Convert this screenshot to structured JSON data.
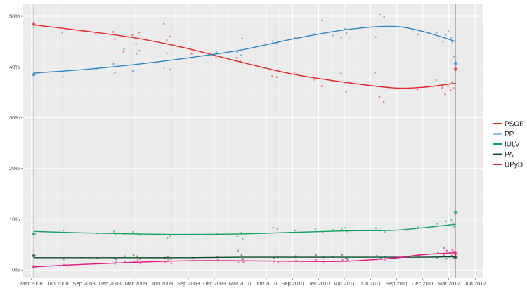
{
  "chart_data": {
    "type": "scatter",
    "title": "",
    "xlabel": "",
    "ylabel": "",
    "xlim": [
      "2008-02-01",
      "2012-06-30"
    ],
    "ylim": [
      -1.5,
      52.5
    ],
    "y_ticks": [
      0,
      10,
      20,
      30,
      40,
      50
    ],
    "y_tick_labels": [
      "0%",
      "10%",
      "20%",
      "30%",
      "40%",
      "50%"
    ],
    "x_ticks": [
      "2008-03-01",
      "2008-06-01",
      "2008-09-01",
      "2008-12-01",
      "2009-03-01",
      "2009-06-01",
      "2009-09-01",
      "2009-12-01",
      "2010-03-01",
      "2010-06-01",
      "2010-09-01",
      "2010-12-01",
      "2011-03-01",
      "2011-06-01",
      "2011-09-01",
      "2011-12-01",
      "2012-03-01",
      "2012-06-01"
    ],
    "x_tick_labels": [
      "Mar 2008",
      "Jun 2008",
      "Sep 2008",
      "Dec 2008",
      "Mar 2009",
      "Jun 2009",
      "Sep 2009",
      "Dec 2009",
      "Mar 2010",
      "Jun 2010",
      "Sep 2010",
      "Dec 2010",
      "Mar 2011",
      "Jun 2011",
      "Sep 2011",
      "Dec 2011",
      "Mar 2012",
      "Jun 2012"
    ],
    "grid": true,
    "legend_placement": "right",
    "election_dates": [
      "2008-03-09",
      "2012-03-25"
    ],
    "series": [
      {
        "name": "PSOE",
        "color": "#e3262b"
      },
      {
        "name": "PP",
        "color": "#2b84c6"
      },
      {
        "name": "IULV",
        "color": "#11a05f"
      },
      {
        "name": "PA",
        "color": "#0c4a2e"
      },
      {
        "name": "UPyD",
        "color": "#e5137f"
      }
    ],
    "elections": [
      {
        "date": "2008-03-09",
        "values": [
          48.4,
          38.5,
          7.1,
          2.8,
          0.6
        ]
      },
      {
        "date": "2012-03-25",
        "values": [
          39.6,
          40.7,
          11.3,
          2.5,
          3.3
        ]
      }
    ],
    "polls": [
      {
        "date": "2008-06-20",
        "values": [
          46.8,
          38.1,
          7.8,
          2.1,
          1.0
        ]
      },
      {
        "date": "2008-10-15",
        "values": [
          46.5,
          39.6,
          7.2,
          2.3,
          1.3
        ]
      },
      {
        "date": "2008-12-15",
        "values": [
          46.9,
          40.6,
          7.6,
          2.3,
          1.2
        ]
      },
      {
        "date": "2008-12-20",
        "values": [
          45.5,
          38.9,
          6.9,
          2.1,
          1.5
        ]
      },
      {
        "date": "2009-01-20",
        "values": [
          43.0,
          43.5,
          7.1,
          2.7,
          1.6
        ]
      },
      {
        "date": "2009-02-20",
        "values": [
          46.3,
          39.2,
          7.5,
          2.9,
          1.7
        ]
      },
      {
        "date": "2009-03-05",
        "values": [
          44.5,
          42.6,
          7.2,
          2.7,
          1.9
        ]
      },
      {
        "date": "2009-03-15",
        "values": [
          46.8,
          43.2,
          6.9,
          2.2,
          1.3
        ]
      },
      {
        "date": "2009-06-10",
        "values": [
          48.5,
          39.9,
          7.0,
          2.4,
          1.6
        ]
      },
      {
        "date": "2009-06-20",
        "values": [
          45.3,
          42.7,
          6.3,
          2.5,
          1.9
        ]
      },
      {
        "date": "2009-07-01",
        "values": [
          46.0,
          39.5,
          6.7,
          2.1,
          1.3
        ]
      },
      {
        "date": "2009-09-15",
        "values": [
          42.6,
          41.8,
          7.0,
          2.4,
          1.8
        ]
      },
      {
        "date": "2009-12-10",
        "values": [
          41.9,
          42.9,
          7.1,
          2.5,
          1.9
        ]
      },
      {
        "date": "2010-02-20",
        "values": [
          41.8,
          43.0,
          6.6,
          3.8,
          1.5
        ]
      },
      {
        "date": "2010-03-05",
        "values": [
          41.2,
          42.3,
          7.3,
          2.9,
          2.1
        ]
      },
      {
        "date": "2010-03-10",
        "values": [
          40.9,
          45.6,
          6.1,
          2.2,
          1.6
        ]
      },
      {
        "date": "2010-06-25",
        "values": [
          38.2,
          45.1,
          8.3,
          2.3,
          1.7
        ]
      },
      {
        "date": "2010-07-10",
        "values": [
          38.0,
          44.6,
          8.1,
          2.5,
          1.5
        ]
      },
      {
        "date": "2010-09-10",
        "values": [
          38.9,
          45.8,
          7.8,
          2.7,
          1.8
        ]
      },
      {
        "date": "2010-11-20",
        "values": [
          37.5,
          46.5,
          8.0,
          2.9,
          1.9
        ]
      },
      {
        "date": "2010-12-15",
        "values": [
          36.2,
          49.2,
          7.4,
          2.5,
          1.6
        ]
      },
      {
        "date": "2011-01-20",
        "values": [
          37.1,
          46.2,
          7.9,
          2.6,
          1.7
        ]
      },
      {
        "date": "2011-02-20",
        "values": [
          38.7,
          45.8,
          8.1,
          3.0,
          2.0
        ]
      },
      {
        "date": "2011-03-05",
        "values": [
          36.9,
          47.5,
          8.3,
          2.4,
          1.7
        ]
      },
      {
        "date": "2011-03-10",
        "values": [
          35.1,
          46.7,
          7.6,
          2.2,
          1.9
        ]
      },
      {
        "date": "2011-06-20",
        "values": [
          38.9,
          45.9,
          8.2,
          2.1,
          2.8
        ]
      },
      {
        "date": "2011-07-05",
        "values": [
          34.1,
          50.3,
          7.8,
          2.4,
          2.2
        ]
      },
      {
        "date": "2011-07-20",
        "values": [
          33.1,
          49.9,
          7.5,
          2.6,
          1.9
        ]
      },
      {
        "date": "2011-11-15",
        "values": [
          35.6,
          46.4,
          8.4,
          2.7,
          3.1
        ]
      },
      {
        "date": "2012-01-20",
        "values": [
          37.4,
          46.8,
          9.1,
          2.3,
          3.4
        ]
      },
      {
        "date": "2012-02-10",
        "values": [
          35.9,
          45.0,
          8.7,
          2.9,
          4.3
        ]
      },
      {
        "date": "2012-02-20",
        "values": [
          34.6,
          46.3,
          9.6,
          2.2,
          3.8
        ]
      },
      {
        "date": "2012-03-01",
        "values": [
          36.2,
          47.1,
          8.8,
          2.6,
          3.3
        ]
      },
      {
        "date": "2012-03-10",
        "values": [
          35.4,
          45.8,
          9.9,
          2.8,
          3.9
        ]
      },
      {
        "date": "2012-03-15",
        "values": [
          37.0,
          44.9,
          9.2,
          2.3,
          3.6
        ]
      },
      {
        "date": "2012-03-20",
        "values": [
          35.8,
          42.1,
          8.5,
          2.5,
          3.0
        ]
      }
    ],
    "trend": {
      "dates": [
        "2008-03-09",
        "2008-09-01",
        "2009-03-01",
        "2009-09-01",
        "2010-03-01",
        "2010-09-01",
        "2011-03-01",
        "2011-08-15",
        "2011-12-01",
        "2012-03-25"
      ],
      "values": [
        [
          48.3,
          47.1,
          45.7,
          43.6,
          41.0,
          38.6,
          37.0,
          35.9,
          36.0,
          36.8
        ],
        [
          38.8,
          39.5,
          40.5,
          41.8,
          43.3,
          45.5,
          47.3,
          48.0,
          47.0,
          45.0
        ],
        [
          7.6,
          7.3,
          7.1,
          7.0,
          7.1,
          7.4,
          7.7,
          7.8,
          8.3,
          9.0
        ],
        [
          2.4,
          2.4,
          2.4,
          2.4,
          2.5,
          2.5,
          2.5,
          2.5,
          2.5,
          2.6
        ],
        [
          0.6,
          1.1,
          1.5,
          1.8,
          1.8,
          1.7,
          1.7,
          2.3,
          3.0,
          3.4
        ]
      ]
    }
  }
}
